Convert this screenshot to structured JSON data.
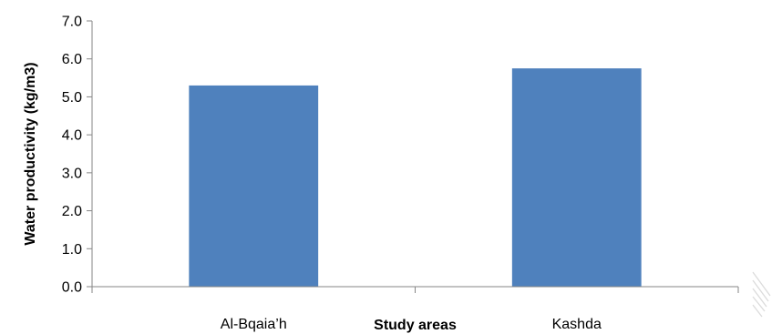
{
  "chart_data": {
    "type": "bar",
    "title": "",
    "xlabel": "Study areas",
    "ylabel": "Water productivity (kg/m3)",
    "categories": [
      "Al-Bqaia’h",
      "Kashda"
    ],
    "values": [
      5.3,
      5.75
    ],
    "ylim": [
      0,
      7
    ],
    "yticks": [
      "0.0",
      "1.0",
      "2.0",
      "3.0",
      "4.0",
      "5.0",
      "6.0",
      "7.0"
    ],
    "grid": false,
    "legend": "none",
    "bar_color": "#4F81BD",
    "axis_color": "#868686"
  }
}
